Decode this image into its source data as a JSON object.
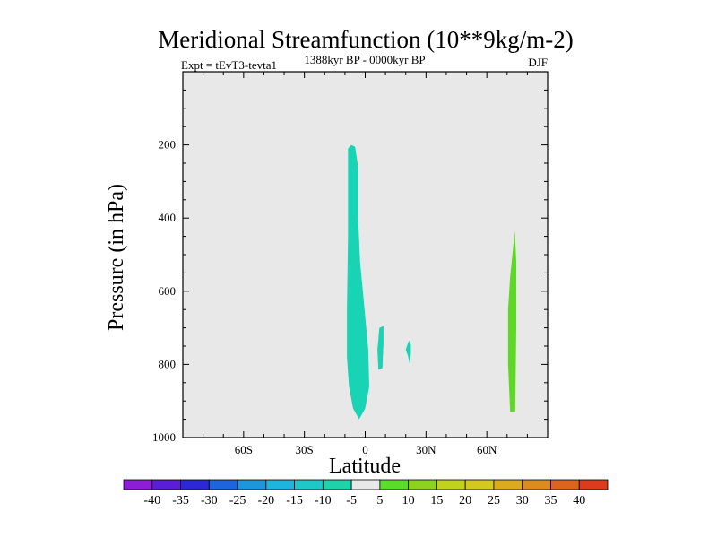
{
  "chart_data": {
    "type": "contour",
    "title": "Meridional Streamfunction (10**9kg/m-2)",
    "subtitle": "1388kyr BP - 0000kyr BP",
    "experiment_label": "Expt = tEvT3-tevta1",
    "season_label": "DJF",
    "xlabel": "Latitude",
    "ylabel": "Pressure (in hPa)",
    "xlim": [
      -90,
      90
    ],
    "ylim": [
      1000,
      0
    ],
    "x_ticks": [
      {
        "value": -60,
        "label": "60S"
      },
      {
        "value": -30,
        "label": "30S"
      },
      {
        "value": 0,
        "label": "0"
      },
      {
        "value": 30,
        "label": "30N"
      },
      {
        "value": 60,
        "label": "60N"
      }
    ],
    "y_ticks": [
      {
        "value": 200,
        "label": "200"
      },
      {
        "value": 400,
        "label": "400"
      },
      {
        "value": 600,
        "label": "600"
      },
      {
        "value": 800,
        "label": "800"
      },
      {
        "value": 1000,
        "label": "1000"
      }
    ],
    "background_color": "#e8e8e8",
    "contour_regions": [
      {
        "name": "equatorial-negative-cell",
        "level": -5,
        "color": "#19d4b4",
        "polygon": [
          [
            -7,
            200
          ],
          [
            -5,
            205
          ],
          [
            -3.5,
            260
          ],
          [
            -3.5,
            400
          ],
          [
            -2.5,
            520
          ],
          [
            -0.5,
            640
          ],
          [
            1.5,
            760
          ],
          [
            2,
            860
          ],
          [
            0,
            920
          ],
          [
            -3,
            950
          ],
          [
            -6,
            920
          ],
          [
            -8,
            860
          ],
          [
            -9,
            780
          ],
          [
            -9,
            650
          ],
          [
            -8.5,
            450
          ],
          [
            -8.5,
            300
          ],
          [
            -8.5,
            210
          ]
        ]
      },
      {
        "name": "small-cell-7N",
        "level": -5,
        "color": "#19d4b4",
        "polygon": [
          [
            7,
            700
          ],
          [
            9,
            695
          ],
          [
            9,
            740
          ],
          [
            8.5,
            810
          ],
          [
            6.5,
            815
          ],
          [
            6,
            760
          ]
        ]
      },
      {
        "name": "small-cell-22N",
        "level": -5,
        "color": "#19d4b4",
        "polygon": [
          [
            21.5,
            735
          ],
          [
            22.5,
            745
          ],
          [
            22.5,
            770
          ],
          [
            22,
            800
          ],
          [
            21,
            775
          ],
          [
            20,
            760
          ]
        ]
      },
      {
        "name": "positive-cell-73N",
        "level": 5,
        "color": "#5dd824",
        "polygon": [
          [
            73.8,
            435
          ],
          [
            74.5,
            520
          ],
          [
            74.5,
            700
          ],
          [
            74,
            930
          ],
          [
            71.5,
            930
          ],
          [
            70.5,
            800
          ],
          [
            70.5,
            650
          ],
          [
            71.5,
            560
          ]
        ]
      }
    ],
    "colorbar": {
      "labels": [
        "-40",
        "-35",
        "-30",
        "-25",
        "-20",
        "-15",
        "-10",
        "-5",
        "5",
        "10",
        "15",
        "20",
        "25",
        "30",
        "35",
        "40"
      ],
      "colors": [
        "#8c1ed6",
        "#5a1ed6",
        "#2d28d6",
        "#1e64dc",
        "#1e96dc",
        "#1eb4dc",
        "#1ec8c8",
        "#1ed2aa",
        "#e8e8e8",
        "#5adc28",
        "#8cd21e",
        "#bed21e",
        "#d2c81e",
        "#dcaa1e",
        "#dc8c1e",
        "#dc641e",
        "#dc3c1e"
      ]
    }
  }
}
